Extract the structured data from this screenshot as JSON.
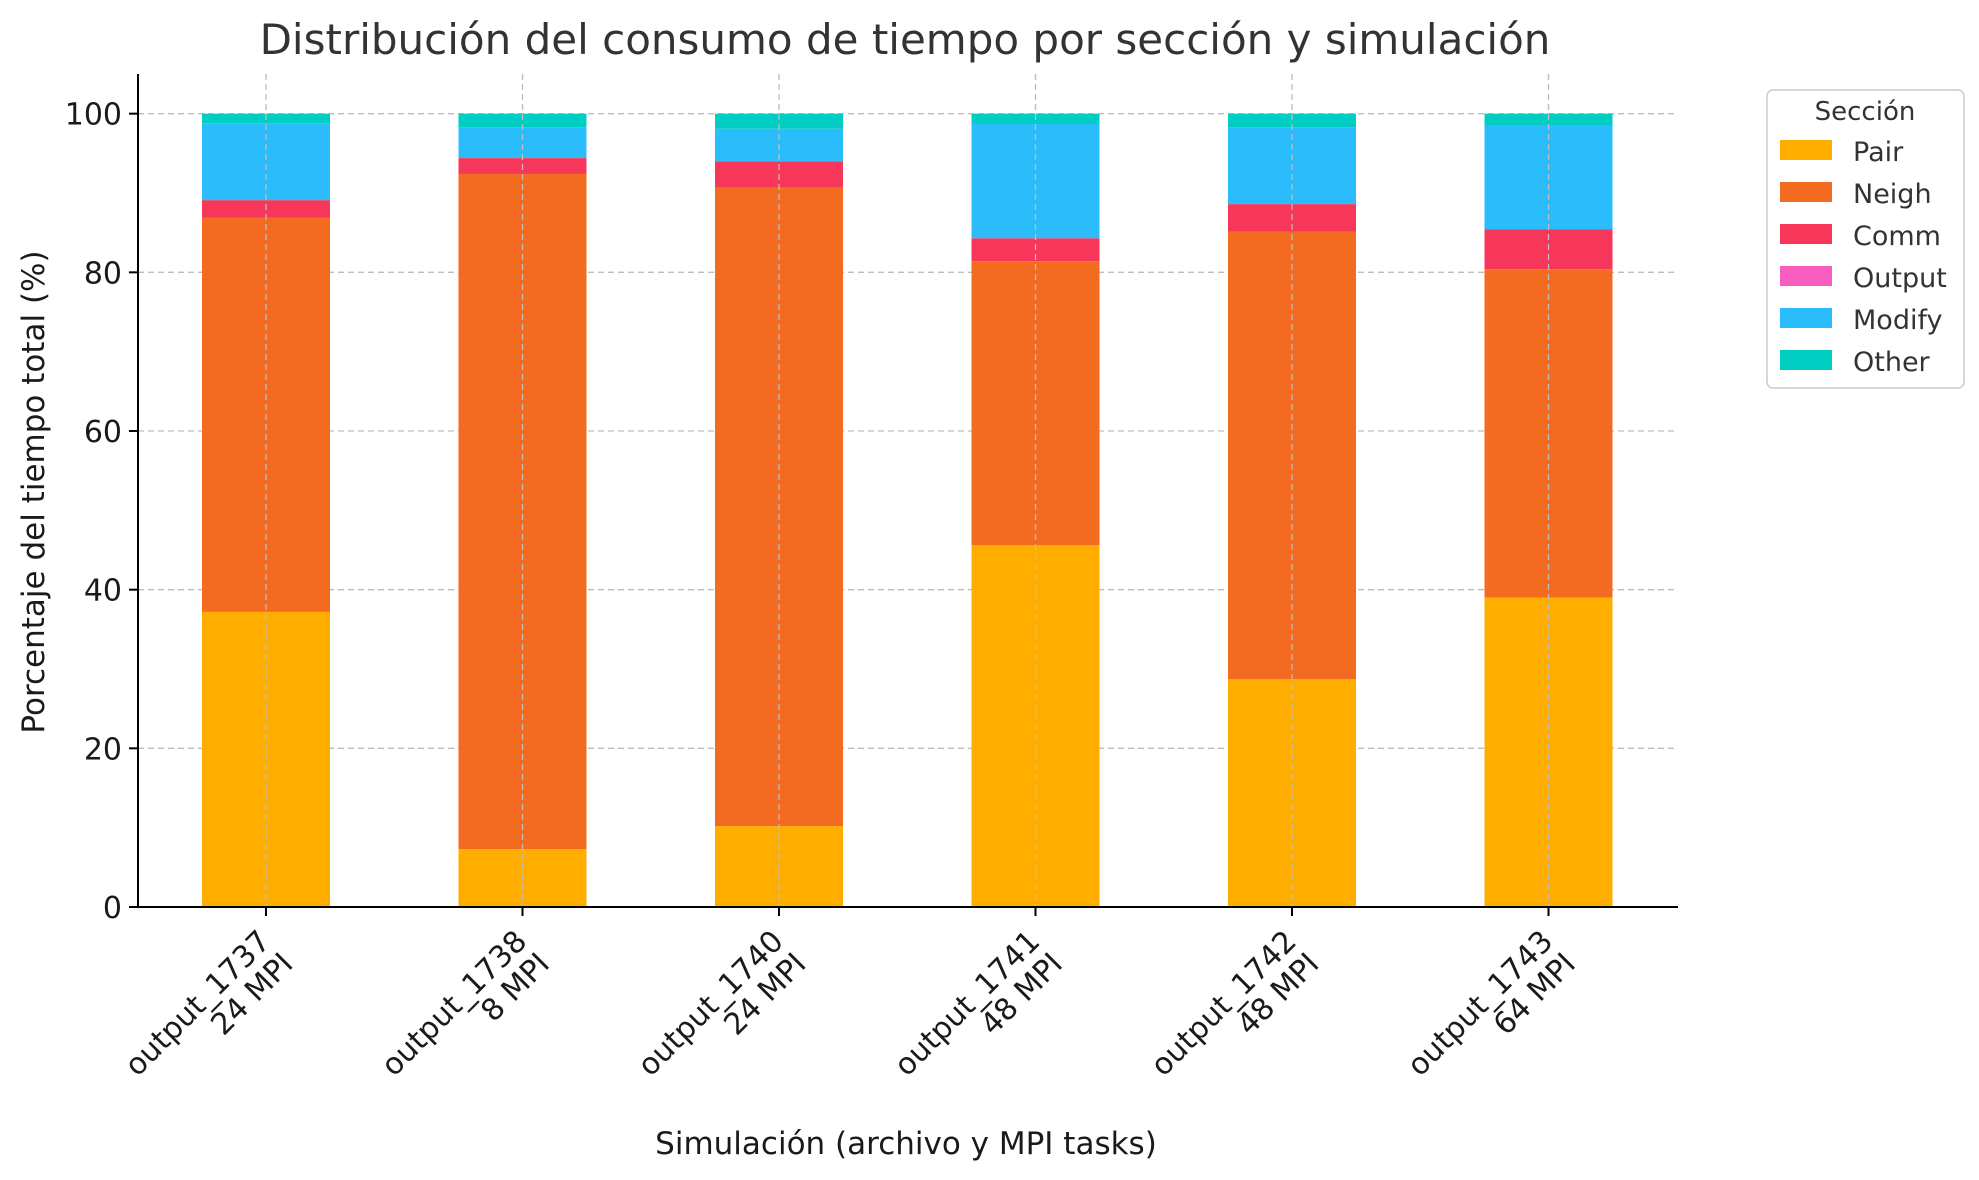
{
  "chart_data": {
    "type": "bar",
    "stacked": true,
    "title": "Distribución del consumo de tiempo por sección y simulación",
    "xlabel": "Simulación (archivo y MPI tasks)",
    "ylabel": "Porcentaje del tiempo total (%)",
    "ylim": [
      0,
      105
    ],
    "yticks": [
      0,
      20,
      40,
      60,
      80,
      100
    ],
    "grid": true,
    "legend_title": "Sección",
    "legend_position": "outside-top-right",
    "categories": [
      [
        "output_1737",
        "24 MPI"
      ],
      [
        "output_1738",
        "8 MPI"
      ],
      [
        "output_1740",
        "24 MPI"
      ],
      [
        "output_1741",
        "48 MPI"
      ],
      [
        "output_1742",
        "48 MPI"
      ],
      [
        "output_1743",
        "64 MPI"
      ]
    ],
    "series": [
      {
        "name": "Pair",
        "color": "#FFAE00",
        "values": [
          37.2,
          7.3,
          10.2,
          45.6,
          28.7,
          39.0
        ]
      },
      {
        "name": "Neigh",
        "color": "#F26B21",
        "values": [
          49.7,
          85.1,
          80.5,
          35.8,
          56.4,
          41.4
        ]
      },
      {
        "name": "Comm",
        "color": "#F7375A",
        "values": [
          2.2,
          2.0,
          3.3,
          2.9,
          3.5,
          5.0
        ]
      },
      {
        "name": "Output",
        "color": "#F75CBF",
        "values": [
          0.0,
          0.0,
          0.0,
          0.0,
          0.0,
          0.0
        ]
      },
      {
        "name": "Modify",
        "color": "#2BBDFB",
        "values": [
          9.7,
          3.9,
          4.1,
          14.4,
          9.7,
          13.1
        ]
      },
      {
        "name": "Other",
        "color": "#00CEC2",
        "values": [
          1.2,
          1.7,
          1.9,
          1.3,
          1.7,
          1.5
        ]
      }
    ]
  }
}
